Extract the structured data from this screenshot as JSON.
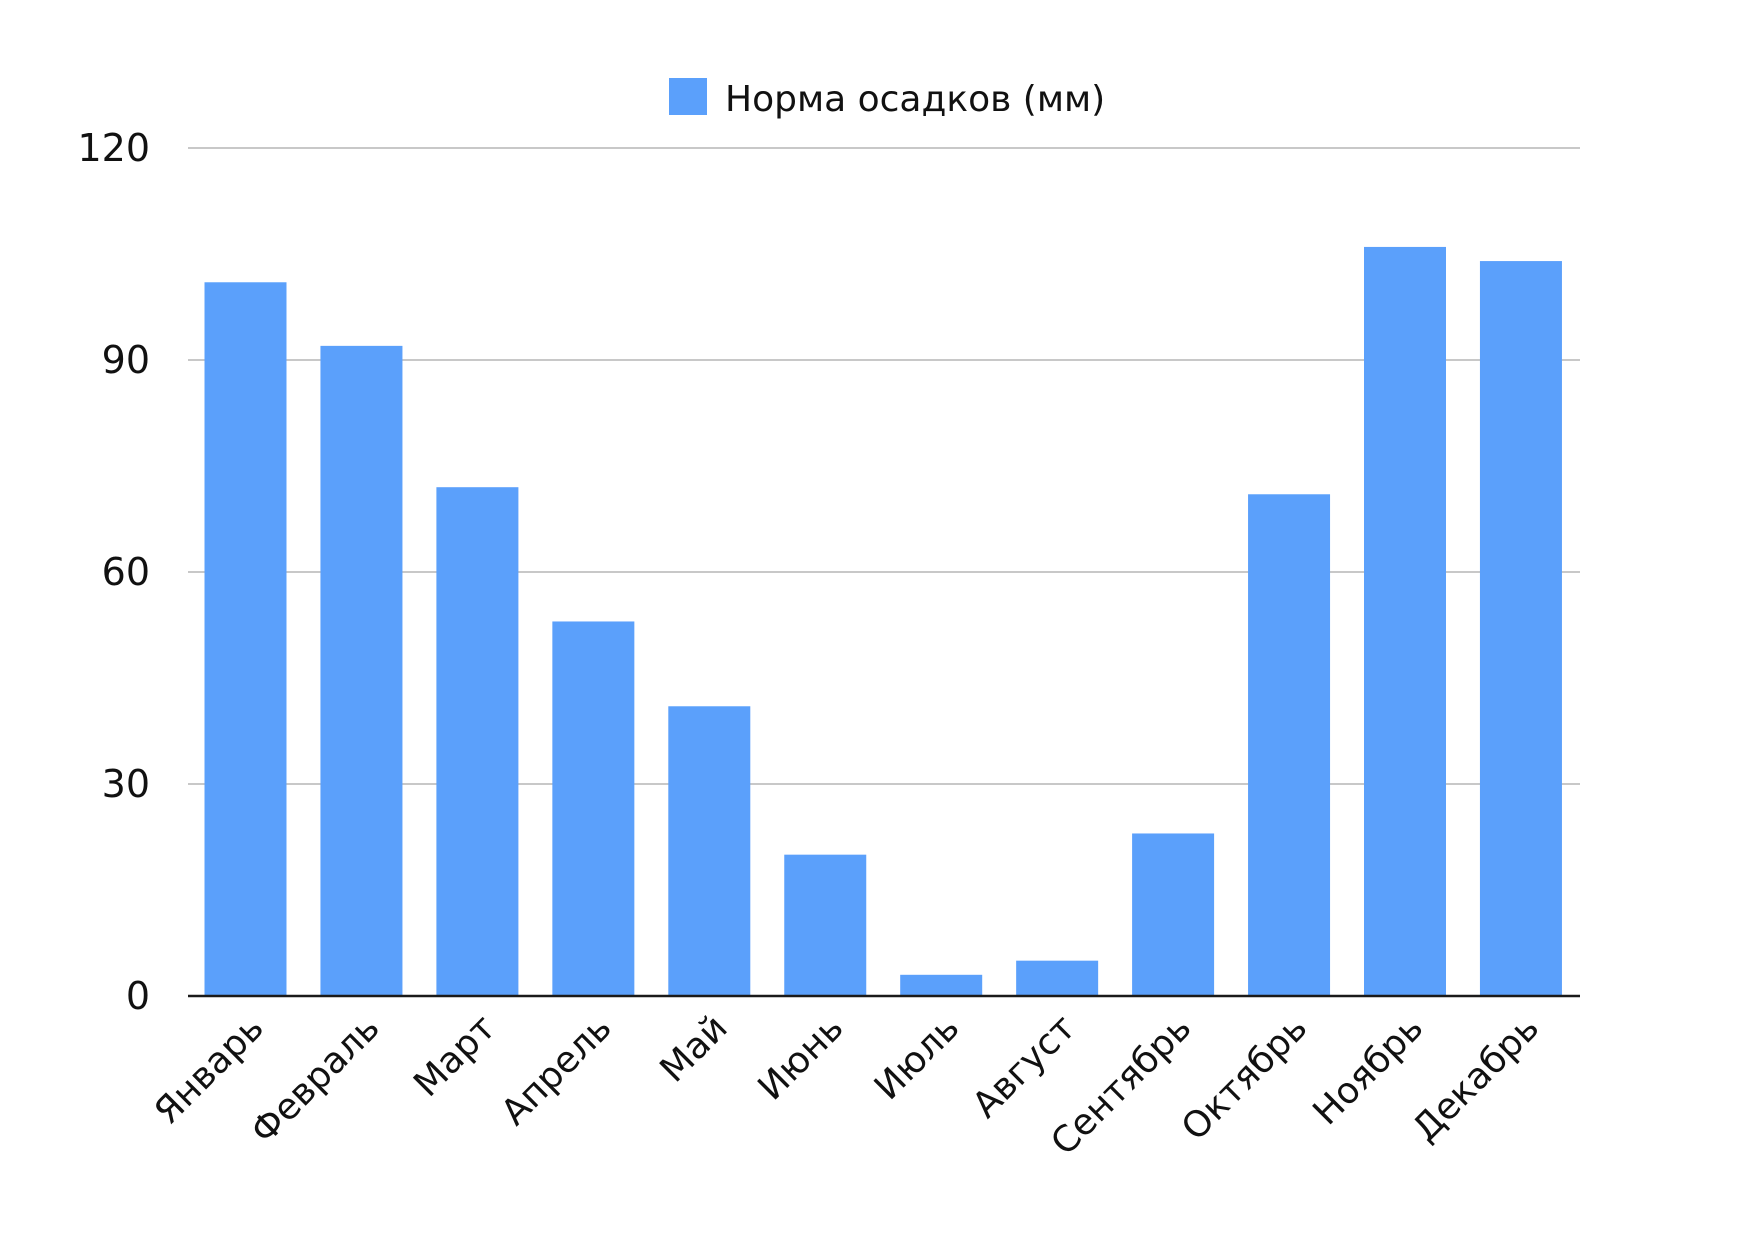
{
  "chart_data": {
    "type": "bar",
    "categories": [
      "Январь",
      "Февраль",
      "Март",
      "Апрель",
      "Май",
      "Июнь",
      "Июль",
      "Август",
      "Сентябрь",
      "Октябрь",
      "Ноябрь",
      "Декабрь"
    ],
    "series": [
      {
        "name": "Норма осадков (мм)",
        "values": [
          101,
          92,
          72,
          53,
          41,
          20,
          3,
          5,
          23,
          71,
          106,
          104
        ],
        "color": "#5ba0fb"
      }
    ],
    "ylim": [
      0,
      120
    ],
    "yticks": [
      0,
      30,
      60,
      90,
      120
    ],
    "legend_position": "top-center",
    "grid": true
  }
}
